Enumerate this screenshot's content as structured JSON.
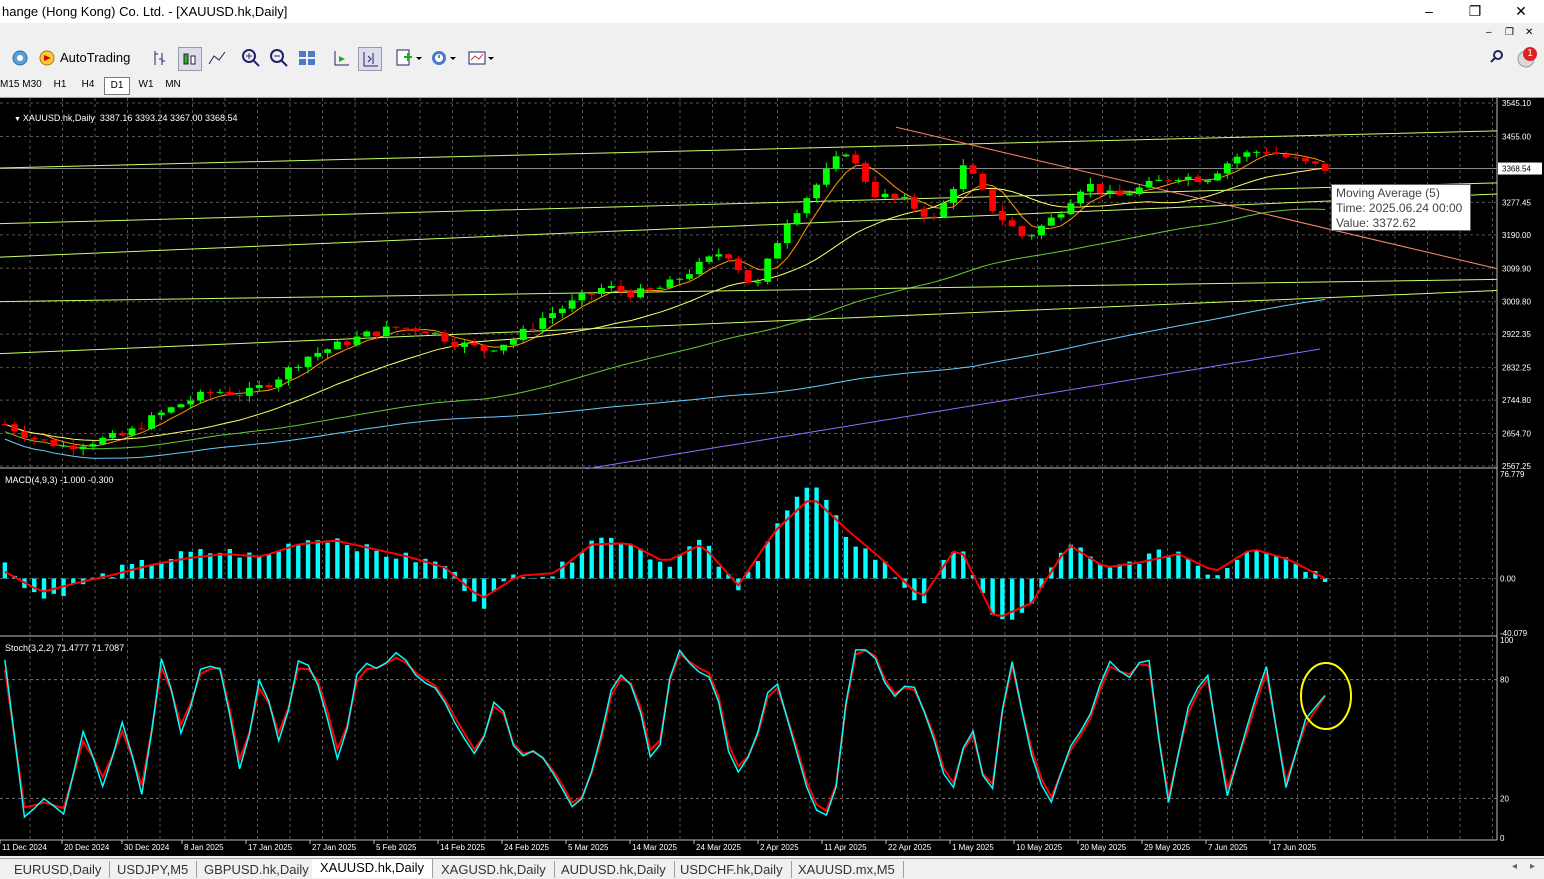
{
  "window": {
    "title": "hange (Hong Kong) Co. Ltd. - [XAUUSD.hk,Daily]",
    "minimize": "–",
    "restore": "❐",
    "close": "✕"
  },
  "toolbar": {
    "autotrading": "AutoTrading",
    "notification_count": "1"
  },
  "timeframes": [
    "M15",
    "M30",
    "H1",
    "H4",
    "D1",
    "W1",
    "MN"
  ],
  "active_timeframe": "D1",
  "main_chart": {
    "header": "XAUUSD.hk,Daily  3387.16 3393.24 3367.00 3368.54",
    "price_labels": [
      "3545.10",
      "3455.00",
      "3277.45",
      "3190.00",
      "3099.90",
      "3009.80",
      "2922.35",
      "2832.25",
      "2744.80",
      "2654.70",
      "2567.25"
    ],
    "current_price": "3368.54",
    "tooltip": {
      "line1": "Moving Average (5)",
      "line2": "Time: 2025.06.24 00:00",
      "line3": "Value: 3372.62"
    }
  },
  "macd": {
    "header": "MACD(4,9,3) -1.000 -0.300",
    "labels": [
      "76.779",
      "0.00",
      "-40.079"
    ]
  },
  "stoch": {
    "header": "Stoch(3,2,2) 71.4777 71.7087",
    "labels": [
      "100",
      "80",
      "20",
      "0"
    ]
  },
  "date_labels": [
    "11 Dec 2024",
    "20 Dec 2024",
    "30 Dec 2024",
    "8 Jan 2025",
    "17 Jan 2025",
    "27 Jan 2025",
    "5 Feb 2025",
    "14 Feb 2025",
    "24 Feb 2025",
    "5 Mar 2025",
    "14 Mar 2025",
    "24 Mar 2025",
    "2 Apr 2025",
    "11 Apr 2025",
    "22 Apr 2025",
    "1 May 2025",
    "10 May 2025",
    "20 May 2025",
    "29 May 2025",
    "7 Jun 2025",
    "17 Jun 2025"
  ],
  "tabs": [
    "EURUSD,Daily",
    "USDJPY,M5",
    "GBPUSD.hk,Daily",
    "XAUUSD.hk,Daily",
    "XAGUSD.hk,Daily",
    "AUDUSD.hk,Daily",
    "USDCHF.hk,Daily",
    "XAUUSD.mx,M5"
  ],
  "active_tab": "XAUUSD.hk,Daily",
  "colors": {
    "bull": "#00ff00",
    "bear": "#ff0000",
    "macd_hist": "#00ffff",
    "macd_signal": "#ff0000",
    "stoch_main": "#00ffff",
    "stoch_signal": "#ff0000",
    "ma200": "#9966ff",
    "ma100": "#66ccff",
    "ma50": "#66cc33",
    "ma20": "#ffff66",
    "ma5": "#ff9900",
    "channel": "#ccff66",
    "trendline": "#ff8866",
    "highlight_circle": "#ffff00"
  },
  "chart_data": [
    {
      "type": "candlestick",
      "title": "XAUUSD.hk,Daily",
      "ylim": [
        2567.25,
        3545.1
      ],
      "x_range": [
        "11 Dec 2024",
        "24 Jun 2025"
      ],
      "last_bar": {
        "open": 3387.16,
        "high": 3393.24,
        "low": 3367.0,
        "close": 3368.54
      },
      "close_path": [
        [
          0,
          2680
        ],
        [
          8,
          2640
        ],
        [
          16,
          2620
        ],
        [
          24,
          2635
        ],
        [
          32,
          2650
        ],
        [
          40,
          2700
        ],
        [
          48,
          2740
        ],
        [
          56,
          2770
        ],
        [
          64,
          2760
        ],
        [
          72,
          2800
        ],
        [
          80,
          2860
        ],
        [
          88,
          2890
        ],
        [
          96,
          2920
        ],
        [
          104,
          2940
        ],
        [
          112,
          2935
        ],
        [
          120,
          2900
        ],
        [
          128,
          2880
        ],
        [
          136,
          2910
        ],
        [
          144,
          2970
        ],
        [
          152,
          3010
        ],
        [
          160,
          3050
        ],
        [
          168,
          3030
        ],
        [
          176,
          3050
        ],
        [
          184,
          3100
        ],
        [
          192,
          3150
        ],
        [
          200,
          3040
        ],
        [
          208,
          3220
        ],
        [
          216,
          3320
        ],
        [
          224,
          3420
        ],
        [
          232,
          3300
        ],
        [
          240,
          3280
        ],
        [
          248,
          3230
        ],
        [
          256,
          3380
        ],
        [
          264,
          3250
        ],
        [
          272,
          3180
        ],
        [
          280,
          3240
        ],
        [
          288,
          3330
        ],
        [
          296,
          3290
        ],
        [
          304,
          3320
        ],
        [
          312,
          3350
        ],
        [
          320,
          3340
        ],
        [
          328,
          3400
        ],
        [
          336,
          3420
        ],
        [
          344,
          3390
        ],
        [
          352,
          3368
        ]
      ],
      "indicators": [
        "Moving Average (5)",
        "Moving Average (20)",
        "Moving Average (50)",
        "Moving Average (100)",
        "Moving Average (200)",
        "Trendlines"
      ]
    },
    {
      "type": "bar",
      "title": "MACD(4,9,3) -1.000 -0.300",
      "ylim": [
        -40.079,
        76.779
      ],
      "hist_path": [
        [
          0,
          10
        ],
        [
          8,
          -15
        ],
        [
          16,
          -5
        ],
        [
          24,
          5
        ],
        [
          32,
          12
        ],
        [
          40,
          18
        ],
        [
          48,
          20
        ],
        [
          56,
          15
        ],
        [
          64,
          28
        ],
        [
          72,
          30
        ],
        [
          80,
          20
        ],
        [
          88,
          15
        ],
        [
          96,
          10
        ],
        [
          104,
          -20
        ],
        [
          112,
          5
        ],
        [
          120,
          3
        ],
        [
          128,
          30
        ],
        [
          136,
          28
        ],
        [
          144,
          10
        ],
        [
          152,
          28
        ],
        [
          160,
          -10
        ],
        [
          168,
          40
        ],
        [
          176,
          70
        ],
        [
          184,
          30
        ],
        [
          192,
          10
        ],
        [
          200,
          -20
        ],
        [
          208,
          30
        ],
        [
          216,
          -35
        ],
        [
          224,
          -20
        ],
        [
          232,
          28
        ],
        [
          240,
          5
        ],
        [
          248,
          15
        ],
        [
          256,
          20
        ],
        [
          264,
          2
        ],
        [
          272,
          25
        ],
        [
          280,
          15
        ],
        [
          288,
          0
        ]
      ],
      "signal_path": [
        [
          0,
          5
        ],
        [
          8,
          -10
        ],
        [
          16,
          -3
        ],
        [
          24,
          3
        ],
        [
          32,
          10
        ],
        [
          40,
          15
        ],
        [
          48,
          18
        ],
        [
          56,
          16
        ],
        [
          64,
          25
        ],
        [
          72,
          28
        ],
        [
          80,
          22
        ],
        [
          88,
          16
        ],
        [
          96,
          8
        ],
        [
          104,
          -15
        ],
        [
          112,
          2
        ],
        [
          120,
          4
        ],
        [
          128,
          25
        ],
        [
          136,
          26
        ],
        [
          144,
          12
        ],
        [
          152,
          25
        ],
        [
          160,
          -5
        ],
        [
          168,
          35
        ],
        [
          176,
          60
        ],
        [
          184,
          35
        ],
        [
          192,
          12
        ],
        [
          200,
          -15
        ],
        [
          208,
          25
        ],
        [
          216,
          -30
        ],
        [
          224,
          -18
        ],
        [
          232,
          25
        ],
        [
          240,
          8
        ],
        [
          248,
          12
        ],
        [
          256,
          18
        ],
        [
          264,
          5
        ],
        [
          272,
          22
        ],
        [
          280,
          14
        ],
        [
          288,
          0
        ]
      ]
    },
    {
      "type": "line",
      "title": "Stoch(3,2,2) 71.4777 71.7087",
      "ylim": [
        0,
        100
      ],
      "main_path": [
        [
          0,
          90
        ],
        [
          4,
          10
        ],
        [
          8,
          20
        ],
        [
          12,
          12
        ],
        [
          16,
          55
        ],
        [
          20,
          25
        ],
        [
          24,
          60
        ],
        [
          28,
          20
        ],
        [
          32,
          95
        ],
        [
          36,
          50
        ],
        [
          40,
          88
        ],
        [
          44,
          85
        ],
        [
          48,
          30
        ],
        [
          52,
          85
        ],
        [
          56,
          45
        ],
        [
          60,
          95
        ],
        [
          64,
          75
        ],
        [
          68,
          35
        ],
        [
          72,
          90
        ],
        [
          76,
          85
        ],
        [
          80,
          95
        ],
        [
          84,
          80
        ],
        [
          88,
          75
        ],
        [
          92,
          55
        ],
        [
          96,
          40
        ],
        [
          100,
          75
        ],
        [
          104,
          40
        ],
        [
          108,
          45
        ],
        [
          112,
          30
        ],
        [
          116,
          12
        ],
        [
          120,
          40
        ],
        [
          124,
          85
        ],
        [
          128,
          75
        ],
        [
          132,
          30
        ],
        [
          136,
          98
        ],
        [
          140,
          85
        ],
        [
          144,
          80
        ],
        [
          148,
          30
        ],
        [
          152,
          45
        ],
        [
          156,
          85
        ],
        [
          160,
          50
        ],
        [
          164,
          15
        ],
        [
          168,
          10
        ],
        [
          172,
          95
        ],
        [
          176,
          95
        ],
        [
          180,
          70
        ],
        [
          184,
          80
        ],
        [
          188,
          55
        ],
        [
          192,
          20
        ],
        [
          196,
          60
        ],
        [
          200,
          15
        ],
        [
          204,
          95
        ],
        [
          208,
          45
        ],
        [
          212,
          15
        ],
        [
          216,
          45
        ],
        [
          220,
          60
        ],
        [
          224,
          90
        ],
        [
          228,
          80
        ],
        [
          232,
          95
        ],
        [
          236,
          15
        ],
        [
          240,
          65
        ],
        [
          244,
          85
        ],
        [
          248,
          20
        ],
        [
          252,
          55
        ],
        [
          256,
          88
        ],
        [
          260,
          25
        ],
        [
          264,
          60
        ],
        [
          268,
          72
        ]
      ],
      "signal_path": [
        [
          0,
          85
        ],
        [
          4,
          15
        ],
        [
          8,
          18
        ],
        [
          12,
          15
        ],
        [
          16,
          50
        ],
        [
          20,
          30
        ],
        [
          24,
          55
        ],
        [
          28,
          25
        ],
        [
          32,
          90
        ],
        [
          36,
          55
        ],
        [
          40,
          85
        ],
        [
          44,
          86
        ],
        [
          48,
          35
        ],
        [
          52,
          80
        ],
        [
          56,
          50
        ],
        [
          60,
          90
        ],
        [
          64,
          78
        ],
        [
          68,
          40
        ],
        [
          72,
          85
        ],
        [
          76,
          86
        ],
        [
          80,
          92
        ],
        [
          84,
          82
        ],
        [
          88,
          76
        ],
        [
          92,
          58
        ],
        [
          96,
          42
        ],
        [
          100,
          72
        ],
        [
          104,
          42
        ],
        [
          108,
          44
        ],
        [
          112,
          32
        ],
        [
          116,
          14
        ],
        [
          120,
          38
        ],
        [
          124,
          82
        ],
        [
          128,
          77
        ],
        [
          132,
          34
        ],
        [
          136,
          95
        ],
        [
          140,
          87
        ],
        [
          144,
          82
        ],
        [
          148,
          34
        ],
        [
          152,
          44
        ],
        [
          156,
          82
        ],
        [
          160,
          52
        ],
        [
          164,
          18
        ],
        [
          168,
          12
        ],
        [
          172,
          92
        ],
        [
          176,
          96
        ],
        [
          180,
          72
        ],
        [
          184,
          78
        ],
        [
          188,
          57
        ],
        [
          192,
          23
        ],
        [
          196,
          57
        ],
        [
          200,
          18
        ],
        [
          204,
          92
        ],
        [
          208,
          48
        ],
        [
          212,
          18
        ],
        [
          216,
          43
        ],
        [
          220,
          58
        ],
        [
          224,
          87
        ],
        [
          228,
          82
        ],
        [
          232,
          92
        ],
        [
          236,
          18
        ],
        [
          240,
          62
        ],
        [
          244,
          83
        ],
        [
          248,
          24
        ],
        [
          252,
          52
        ],
        [
          256,
          85
        ],
        [
          260,
          28
        ],
        [
          264,
          57
        ],
        [
          268,
          71.7
        ]
      ]
    }
  ]
}
